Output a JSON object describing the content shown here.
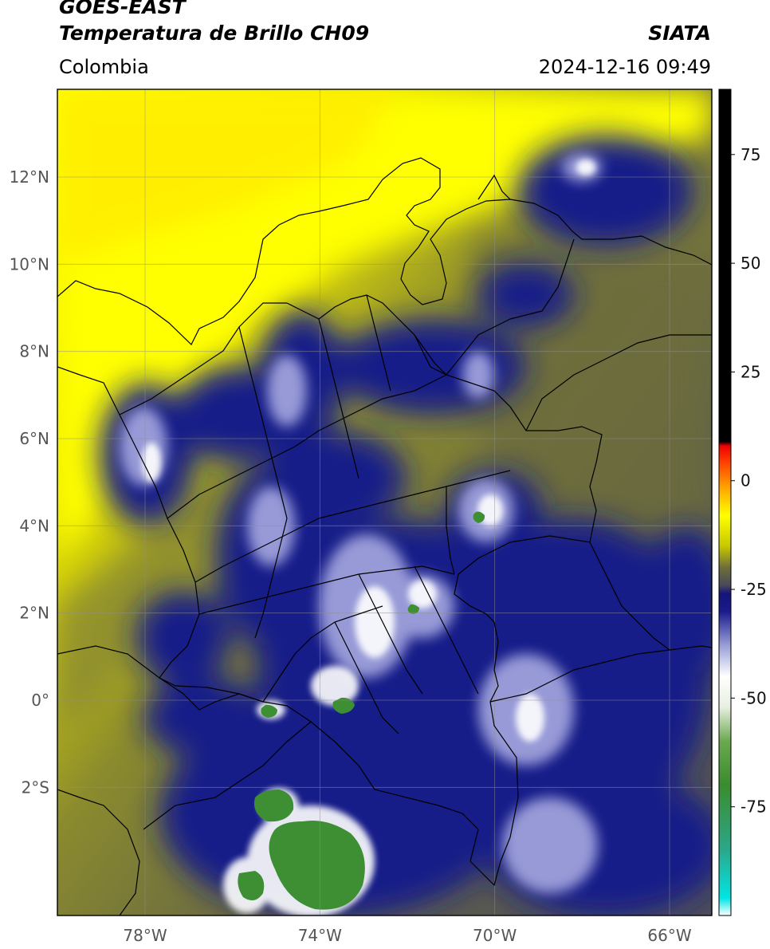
{
  "header": {
    "title_line1": "GOES-EAST",
    "title_line2": "Temperatura de Brillo CH09",
    "organization": "SIATA",
    "region": "Colombia",
    "timestamp": "2024-12-16 09:49"
  },
  "map": {
    "lon_range": [
      -80,
      -65
    ],
    "lat_range": [
      -5,
      14
    ],
    "lat_ticks": [
      {
        "value": 12,
        "label": "12°N"
      },
      {
        "value": 10,
        "label": "10°N"
      },
      {
        "value": 8,
        "label": "8°N"
      },
      {
        "value": 6,
        "label": "6°N"
      },
      {
        "value": 4,
        "label": "4°N"
      },
      {
        "value": 2,
        "label": "2°N"
      },
      {
        "value": 0,
        "label": "0°"
      },
      {
        "value": -2,
        "label": "2°S"
      }
    ],
    "lon_ticks": [
      {
        "value": -78,
        "label": "78°W"
      },
      {
        "value": -74,
        "label": "74°W"
      },
      {
        "value": -70,
        "label": "70°W"
      },
      {
        "value": -66,
        "label": "66°W"
      }
    ],
    "grid": true
  },
  "colorbar": {
    "range": [
      -100,
      90
    ],
    "ticks": [
      {
        "value": 75,
        "label": "75"
      },
      {
        "value": 50,
        "label": "50"
      },
      {
        "value": 25,
        "label": "25"
      },
      {
        "value": 0,
        "label": "0"
      },
      {
        "value": -25,
        "label": "-25"
      },
      {
        "value": -50,
        "label": "-50"
      },
      {
        "value": -75,
        "label": "-75"
      }
    ],
    "stops": [
      {
        "value": -100,
        "color": "#ffffff"
      },
      {
        "value": -96,
        "color": "#00e5e5"
      },
      {
        "value": -85,
        "color": "#2ba88a"
      },
      {
        "value": -70,
        "color": "#3a8c2e"
      },
      {
        "value": -60,
        "color": "#6aa84f"
      },
      {
        "value": -52,
        "color": "#e8f0e0"
      },
      {
        "value": -45,
        "color": "#ffffff"
      },
      {
        "value": -38,
        "color": "#9aa0d8"
      },
      {
        "value": -30,
        "color": "#1a1a8c"
      },
      {
        "value": -26,
        "color": "#14147a"
      },
      {
        "value": -24,
        "color": "#4a4a5a"
      },
      {
        "value": -20,
        "color": "#6e6e3a"
      },
      {
        "value": -15,
        "color": "#c8c800"
      },
      {
        "value": -8,
        "color": "#ffff00"
      },
      {
        "value": -2,
        "color": "#ffaa00"
      },
      {
        "value": 4,
        "color": "#ff4400"
      },
      {
        "value": 8,
        "color": "#ee0000"
      },
      {
        "value": 9,
        "color": "#000000"
      },
      {
        "value": 90,
        "color": "#000000"
      }
    ]
  }
}
